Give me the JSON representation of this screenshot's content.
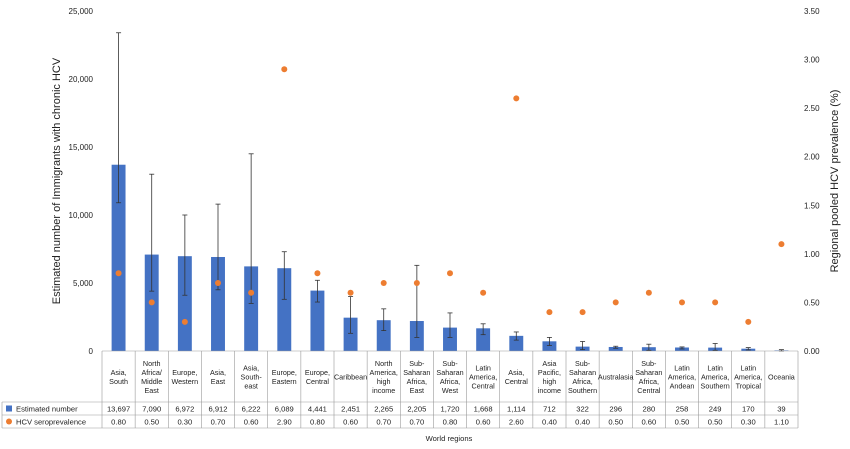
{
  "chart_data": {
    "type": "bar",
    "categories": [
      [
        "Asia,",
        "South"
      ],
      [
        "North",
        "Africa/",
        "Middle",
        "East"
      ],
      [
        "Europe,",
        "Western"
      ],
      [
        "Asia,",
        "East"
      ],
      [
        "Asia,",
        "South-",
        "east"
      ],
      [
        "Europe,",
        "Eastern"
      ],
      [
        "Europe,",
        "Central"
      ],
      [
        "Caribbean"
      ],
      [
        "North",
        "America,",
        "high",
        "income"
      ],
      [
        "Sub-",
        "Saharan",
        "Africa,",
        "East"
      ],
      [
        "Sub-",
        "Saharan",
        "Africa,",
        "West"
      ],
      [
        "Latin",
        "America,",
        "Central"
      ],
      [
        "Asia,",
        "Central"
      ],
      [
        "Asia",
        "Pacific,",
        "high",
        "income"
      ],
      [
        "Sub-",
        "Saharan",
        "Africa,",
        "Southern"
      ],
      [
        "Australasia"
      ],
      [
        "Sub-",
        "Saharan",
        "Africa,",
        "Central"
      ],
      [
        "Latin",
        "America,",
        "Andean"
      ],
      [
        "Latin",
        "America,",
        "Southern"
      ],
      [
        "Latin",
        "America,",
        "Tropical"
      ],
      [
        "Oceania"
      ]
    ],
    "series": [
      {
        "name": "Estimated number",
        "type": "bar",
        "axis": "left",
        "color": "#4472c4",
        "values": [
          13697,
          7090,
          6972,
          6912,
          6222,
          6089,
          4441,
          2451,
          2265,
          2205,
          1720,
          1668,
          1114,
          712,
          322,
          296,
          280,
          258,
          249,
          170,
          39
        ],
        "labels": [
          "13,697",
          "7,090",
          "6,972",
          "6,912",
          "6,222",
          "6,089",
          "4,441",
          "2,451",
          "2,265",
          "2,205",
          "1,720",
          "1,668",
          "1,114",
          "712",
          "322",
          "296",
          "280",
          "258",
          "249",
          "170",
          "39"
        ],
        "error_low": [
          10900,
          4400,
          4100,
          4500,
          3500,
          3800,
          3600,
          1300,
          1500,
          1000,
          1000,
          1200,
          800,
          400,
          100,
          200,
          50,
          150,
          50,
          80,
          0
        ],
        "error_high": [
          23400,
          13000,
          10000,
          10800,
          14500,
          7300,
          5200,
          4000,
          3100,
          6300,
          2800,
          2000,
          1400,
          1000,
          700,
          350,
          500,
          300,
          550,
          250,
          100
        ]
      },
      {
        "name": "HCV seroprevalence",
        "type": "scatter",
        "axis": "right",
        "color": "#ed7d31",
        "values": [
          0.8,
          0.5,
          0.3,
          0.7,
          0.6,
          2.9,
          0.8,
          0.6,
          0.7,
          0.7,
          0.8,
          0.6,
          2.6,
          0.4,
          0.4,
          0.5,
          0.6,
          0.5,
          0.5,
          0.3,
          1.1
        ],
        "labels": [
          "0.80",
          "0.50",
          "0.30",
          "0.70",
          "0.60",
          "2.90",
          "0.80",
          "0.60",
          "0.70",
          "0.70",
          "0.80",
          "0.60",
          "2.60",
          "0.40",
          "0.40",
          "0.50",
          "0.60",
          "0.50",
          "0.50",
          "0.30",
          "1.10"
        ]
      }
    ],
    "y_left": {
      "label": "Estimated number of Immigrants with chronic HCV",
      "min": 0,
      "max": 25000,
      "ticks": [
        "0",
        "5,000",
        "10,000",
        "15,000",
        "20,000",
        "25,000"
      ]
    },
    "y_right": {
      "label": "Regional pooled HCV prevalence (%)",
      "min": 0,
      "max": 3.5,
      "ticks": [
        "0.00",
        "0.50",
        "1.00",
        "1.50",
        "2.00",
        "2.50",
        "3.00",
        "3.50"
      ]
    },
    "xlabel": "World regions",
    "grid": false,
    "legend": "data table below chart"
  }
}
